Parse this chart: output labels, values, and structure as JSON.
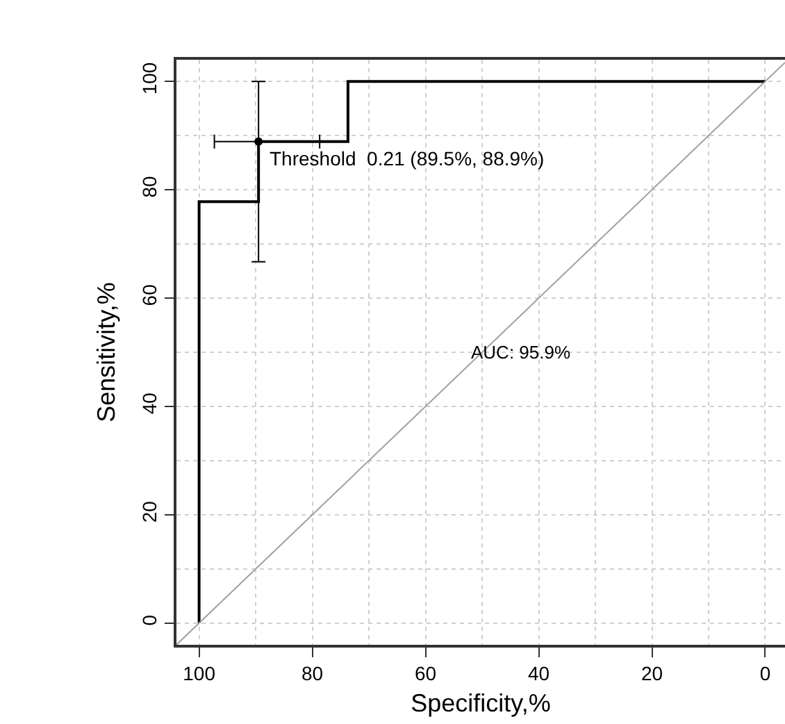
{
  "chart_data": {
    "type": "line",
    "xlabel": "Specificity,%",
    "ylabel": "Sensitivity,%",
    "xlim": [
      104,
      -3.5
    ],
    "ylim": [
      -4,
      104
    ],
    "xticks": [
      100,
      {
        "value": 90,
        "label": null
      },
      80,
      {
        "value": 70,
        "label": null
      },
      60,
      {
        "value": 50,
        "label": null
      },
      40,
      {
        "value": 30,
        "label": null
      },
      20,
      {
        "value": 10,
        "label": null
      },
      0
    ],
    "yticks": [
      0,
      {
        "value": 10,
        "label": null
      },
      20,
      {
        "value": 30,
        "label": null
      },
      40,
      {
        "value": 50,
        "label": null
      },
      60,
      {
        "value": 70,
        "label": null
      },
      80,
      {
        "value": 90,
        "label": null
      },
      100
    ],
    "grid": true,
    "series": [
      {
        "color": "#000000",
        "x": [
          100,
          100,
          89.5,
          89.5,
          73.7,
          73.7,
          0
        ],
        "values": [
          0,
          77.8,
          77.8,
          88.9,
          88.9,
          100,
          100
        ]
      },
      {
        "color": "#a0a0a0",
        "x": [
          104,
          -3.5
        ],
        "values": [
          -4,
          103.5
        ]
      },
      {
        "type": "scatter",
        "color": "#000000",
        "marker": "circle",
        "x": [
          89.5
        ],
        "values": [
          88.9
        ],
        "errors": [
          [
            66.7,
            100
          ]
        ],
        "xerrors": [
          [
            78.7,
            97.3
          ]
        ]
      }
    ],
    "annotations": [
      {
        "text": "Threshold  0.21 (89.5%, 88.9%)",
        "x": 89.5,
        "y": 88.9
      },
      "AUC: 95.9%"
    ]
  }
}
